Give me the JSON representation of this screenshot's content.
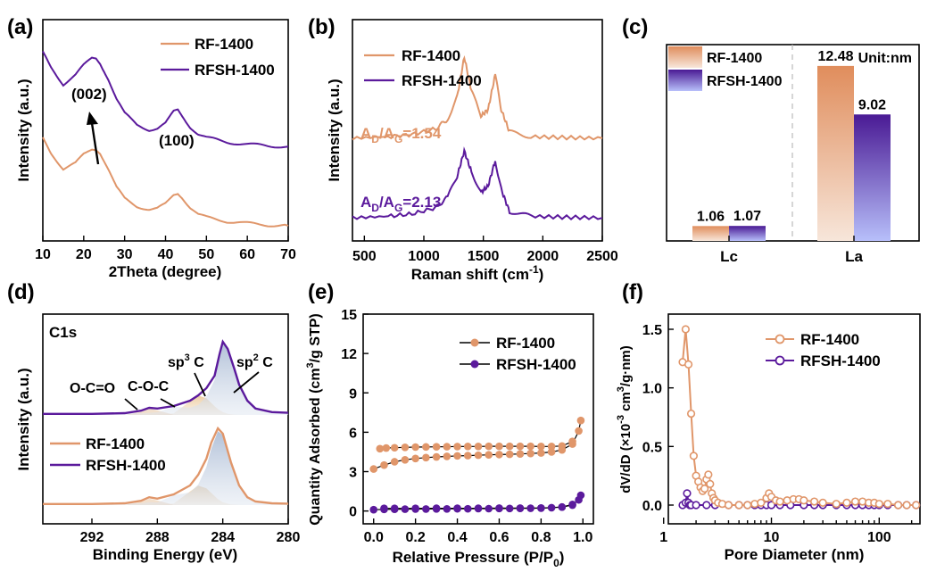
{
  "colors": {
    "rf": "#e0966a",
    "rfsh": "#5b1a9c"
  },
  "panels": {
    "a": "(a)",
    "b": "(b)",
    "c": "(c)",
    "d": "(d)",
    "e": "(e)",
    "f": "(f)"
  },
  "legend": {
    "rf": "RF-1400",
    "rfsh": "RFSH-1400"
  },
  "chart_data": [
    {
      "id": "a",
      "type": "line",
      "xlabel": "2Theta (degree)",
      "ylabel": "Intensity (a.u.)",
      "xlim": [
        10,
        70
      ],
      "xticks": [
        "10",
        "20",
        "30",
        "40",
        "50",
        "60",
        "70"
      ],
      "annotations": {
        "peak1": "(002)",
        "peak2": "(100)"
      },
      "series": [
        {
          "name": "RF-1400",
          "x": [
            10,
            12,
            15,
            18,
            20,
            22,
            23,
            24,
            26,
            28,
            30,
            33,
            36,
            38,
            40,
            42,
            43,
            44,
            46,
            48,
            50,
            55,
            60,
            65,
            70
          ],
          "y": [
            2.6,
            2.2,
            1.75,
            1.9,
            2.15,
            2.3,
            2.3,
            2.2,
            1.75,
            1.25,
            0.95,
            0.75,
            0.66,
            0.68,
            0.8,
            1.05,
            1.1,
            1.0,
            0.72,
            0.52,
            0.44,
            0.34,
            0.28,
            0.24,
            0.22
          ]
        },
        {
          "name": "RFSH-1400",
          "x": [
            10,
            12,
            15,
            18,
            20,
            22,
            23,
            24,
            26,
            28,
            30,
            33,
            36,
            38,
            40,
            42,
            43,
            44,
            46,
            48,
            50,
            55,
            60,
            65,
            70
          ],
          "y": [
            4.9,
            4.5,
            4.05,
            4.3,
            4.55,
            4.75,
            4.75,
            4.62,
            4.2,
            3.65,
            3.25,
            2.95,
            2.82,
            2.85,
            2.98,
            3.3,
            3.35,
            3.2,
            2.9,
            2.7,
            2.6,
            2.48,
            2.42,
            2.38,
            2.36
          ]
        }
      ]
    },
    {
      "id": "b",
      "type": "line",
      "xlabel": "Raman shift (cm",
      "xlabel_sup": "-1",
      "xlabel_end": ")",
      "ylabel": "Intensity (a.u.)",
      "xlim": [
        400,
        2500
      ],
      "xticks": [
        "500",
        "1000",
        "1500",
        "2000",
        "2500"
      ],
      "ratio_rf": {
        "main": "A",
        "sub1": "D",
        "mid": "/A",
        "sub2": "G",
        "val": "=1.54"
      },
      "ratio_rfsh": {
        "main": "A",
        "sub1": "D",
        "mid": "/A",
        "sub2": "G",
        "val": "=2.13"
      },
      "series": [
        {
          "name": "RF-1400",
          "x": [
            400,
            700,
            900,
            1100,
            1200,
            1280,
            1340,
            1400,
            1480,
            1540,
            1600,
            1650,
            1720,
            1900,
            2200,
            2500
          ],
          "y": [
            3.0,
            3.05,
            3.12,
            3.3,
            3.6,
            4.3,
            5.55,
            4.5,
            3.7,
            3.9,
            5.0,
            3.9,
            3.2,
            3.05,
            3.02,
            3.0
          ]
        },
        {
          "name": "RFSH-1400",
          "x": [
            400,
            700,
            900,
            1100,
            1200,
            1280,
            1340,
            1400,
            1480,
            1540,
            1600,
            1650,
            1720,
            1900,
            2200,
            2500
          ],
          "y": [
            0.5,
            0.55,
            0.62,
            0.82,
            1.15,
            1.8,
            2.6,
            1.95,
            1.3,
            1.5,
            2.3,
            1.4,
            0.7,
            0.55,
            0.52,
            0.5
          ]
        }
      ]
    },
    {
      "id": "c",
      "type": "bar",
      "categories": [
        "Lc",
        "La"
      ],
      "unit_label": "Unit:nm",
      "ylim": [
        0,
        14
      ],
      "series": [
        {
          "name": "RF-1400",
          "values": [
            1.06,
            12.48
          ],
          "labels": [
            "1.06",
            "12.48"
          ]
        },
        {
          "name": "RFSH-1400",
          "values": [
            1.07,
            9.02
          ],
          "labels": [
            "1.07",
            "9.02"
          ]
        }
      ]
    },
    {
      "id": "d",
      "type": "area",
      "xlabel": "Binding Energy (eV)",
      "ylabel": "Intensity (a.u.)",
      "xlim": [
        295,
        280
      ],
      "xticks": [
        "292",
        "288",
        "284",
        "280"
      ],
      "region": "C1s",
      "peaks": {
        "oco": "O-C=O",
        "coc": "C-O-C",
        "sp3": "sp",
        "sp2": "sp",
        "sup3": "3",
        "sup2": "2",
        "c": " C"
      },
      "series": [
        {
          "name": "RF-1400",
          "x": [
            295,
            292,
            290,
            289,
            288.5,
            288,
            287,
            286,
            285.5,
            285,
            284.7,
            284.3,
            284,
            283.5,
            283,
            282.5,
            282,
            281,
            280
          ],
          "y": [
            0.03,
            0.03,
            0.05,
            0.12,
            0.22,
            0.18,
            0.3,
            0.55,
            0.85,
            1.3,
            1.75,
            2.15,
            2.0,
            1.2,
            0.55,
            0.22,
            0.1,
            0.05,
            0.04
          ]
        },
        {
          "name": "RFSH-1400",
          "x": [
            295,
            292,
            290,
            289,
            288.5,
            288,
            287,
            286,
            285.5,
            285,
            284.5,
            284.2,
            284,
            283.7,
            283.3,
            283,
            282.5,
            282,
            281,
            280
          ],
          "y": [
            0.03,
            0.03,
            0.05,
            0.12,
            0.2,
            0.18,
            0.25,
            0.4,
            0.55,
            0.75,
            1.1,
            1.7,
            2.05,
            1.85,
            1.3,
            0.85,
            0.4,
            0.18,
            0.08,
            0.06
          ]
        }
      ]
    },
    {
      "id": "e",
      "type": "scatter",
      "xlabel": "Relative Pressure (P/P",
      "xlabel_sub": "0",
      "xlabel_end": ")",
      "ylabel": "Quantity Adsorbed (cm",
      "ylabel_sup": "3",
      "ylabel_end": "/g STP)",
      "xlim": [
        -0.05,
        1.05
      ],
      "ylim": [
        -0.5,
        15
      ],
      "xticks": [
        "0.0",
        "0.2",
        "0.4",
        "0.6",
        "0.8",
        "1.0"
      ],
      "yticks": [
        "0",
        "3",
        "6",
        "9",
        "12",
        "15"
      ],
      "series": [
        {
          "name": "RF-1400",
          "adsorption_x": [
            0.0,
            0.05,
            0.1,
            0.15,
            0.2,
            0.25,
            0.3,
            0.35,
            0.4,
            0.45,
            0.5,
            0.55,
            0.6,
            0.65,
            0.7,
            0.75,
            0.8,
            0.85,
            0.9,
            0.95,
            0.98,
            0.99
          ],
          "adsorption_y": [
            3.2,
            3.5,
            3.75,
            3.9,
            4.0,
            4.07,
            4.12,
            4.16,
            4.2,
            4.22,
            4.25,
            4.28,
            4.3,
            4.32,
            4.35,
            4.38,
            4.42,
            4.5,
            4.65,
            5.1,
            6.1,
            6.9
          ],
          "desorption_x": [
            0.03,
            0.06,
            0.1,
            0.15,
            0.2,
            0.25,
            0.3,
            0.35,
            0.4,
            0.45,
            0.5,
            0.55,
            0.6,
            0.65,
            0.7,
            0.75,
            0.8,
            0.85,
            0.9,
            0.95
          ],
          "desorption_y": [
            4.75,
            4.8,
            4.82,
            4.85,
            4.87,
            4.88,
            4.89,
            4.9,
            4.91,
            4.92,
            4.92,
            4.93,
            4.93,
            4.93,
            4.93,
            4.93,
            4.92,
            4.92,
            4.95,
            5.3
          ]
        },
        {
          "name": "RFSH-1400",
          "adsorption_x": [
            0.0,
            0.05,
            0.1,
            0.15,
            0.2,
            0.25,
            0.3,
            0.35,
            0.4,
            0.45,
            0.5,
            0.55,
            0.6,
            0.65,
            0.7,
            0.75,
            0.8,
            0.85,
            0.9,
            0.95,
            0.98,
            0.99
          ],
          "adsorption_y": [
            0.1,
            0.12,
            0.13,
            0.14,
            0.15,
            0.15,
            0.16,
            0.16,
            0.17,
            0.17,
            0.18,
            0.18,
            0.19,
            0.19,
            0.2,
            0.21,
            0.22,
            0.25,
            0.3,
            0.45,
            0.85,
            1.2
          ],
          "desorption_x": [
            0.05,
            0.1,
            0.2,
            0.3,
            0.4,
            0.5,
            0.6,
            0.7,
            0.8,
            0.9,
            0.95
          ],
          "desorption_y": [
            0.2,
            0.2,
            0.2,
            0.21,
            0.21,
            0.21,
            0.22,
            0.22,
            0.23,
            0.3,
            0.5
          ]
        }
      ]
    },
    {
      "id": "f",
      "type": "line",
      "xlabel": "Pore Diameter (nm)",
      "ylabel": "dV/dD (×10",
      "ylabel_sup": "-3",
      "ylabel_mid": " cm",
      "ylabel_sup2": "3",
      "ylabel_end": "/g·nm)",
      "xscale": "log",
      "xlim": [
        1,
        230
      ],
      "ylim": [
        -0.08,
        1.55
      ],
      "xticks": [
        "1",
        "10",
        "100"
      ],
      "yticks": [
        "0.0",
        "0.5",
        "1.0",
        "1.5"
      ],
      "series": [
        {
          "name": "RF-1400",
          "x": [
            1.5,
            1.6,
            1.7,
            1.8,
            1.9,
            2.0,
            2.1,
            2.2,
            2.3,
            2.4,
            2.5,
            2.6,
            2.7,
            2.8,
            2.9,
            3.0,
            3.2,
            3.5,
            4,
            5,
            6,
            7,
            8,
            9,
            9.5,
            10,
            11,
            12,
            14,
            16,
            18,
            20,
            25,
            30,
            40,
            50,
            60,
            70,
            80,
            90,
            100,
            120,
            150,
            180,
            220
          ],
          "y": [
            1.22,
            1.5,
            1.2,
            0.78,
            0.42,
            0.25,
            0.2,
            0.15,
            0.12,
            0.14,
            0.22,
            0.26,
            0.18,
            0.1,
            0.06,
            0.04,
            0.02,
            0.01,
            0.0,
            0.0,
            0.0,
            0.01,
            0.02,
            0.06,
            0.1,
            0.07,
            0.04,
            0.03,
            0.04,
            0.05,
            0.05,
            0.04,
            0.03,
            0.02,
            0.01,
            0.02,
            0.03,
            0.03,
            0.02,
            0.02,
            0.01,
            0.01,
            0.0,
            0.0,
            0.0
          ]
        },
        {
          "name": "RFSH-1400",
          "x": [
            1.5,
            1.6,
            1.65,
            1.7,
            1.75,
            1.8,
            2.0,
            2.5,
            3,
            4,
            5,
            6,
            7,
            8,
            9,
            10,
            12,
            15,
            20,
            25,
            30,
            40,
            50,
            60,
            70,
            80,
            90,
            100,
            120,
            150,
            180,
            220
          ],
          "y": [
            0.0,
            0.02,
            0.1,
            0.02,
            0.0,
            0.0,
            0.0,
            0.0,
            0.0,
            0.0,
            0.0,
            0.0,
            0.0,
            0.0,
            0.0,
            0.0,
            0.0,
            0.0,
            0.0,
            0.0,
            0.0,
            0.0,
            0.0,
            0.0,
            0.0,
            0.0,
            0.0,
            0.0,
            0.0,
            0.0,
            0.0,
            0.0
          ]
        }
      ]
    }
  ]
}
